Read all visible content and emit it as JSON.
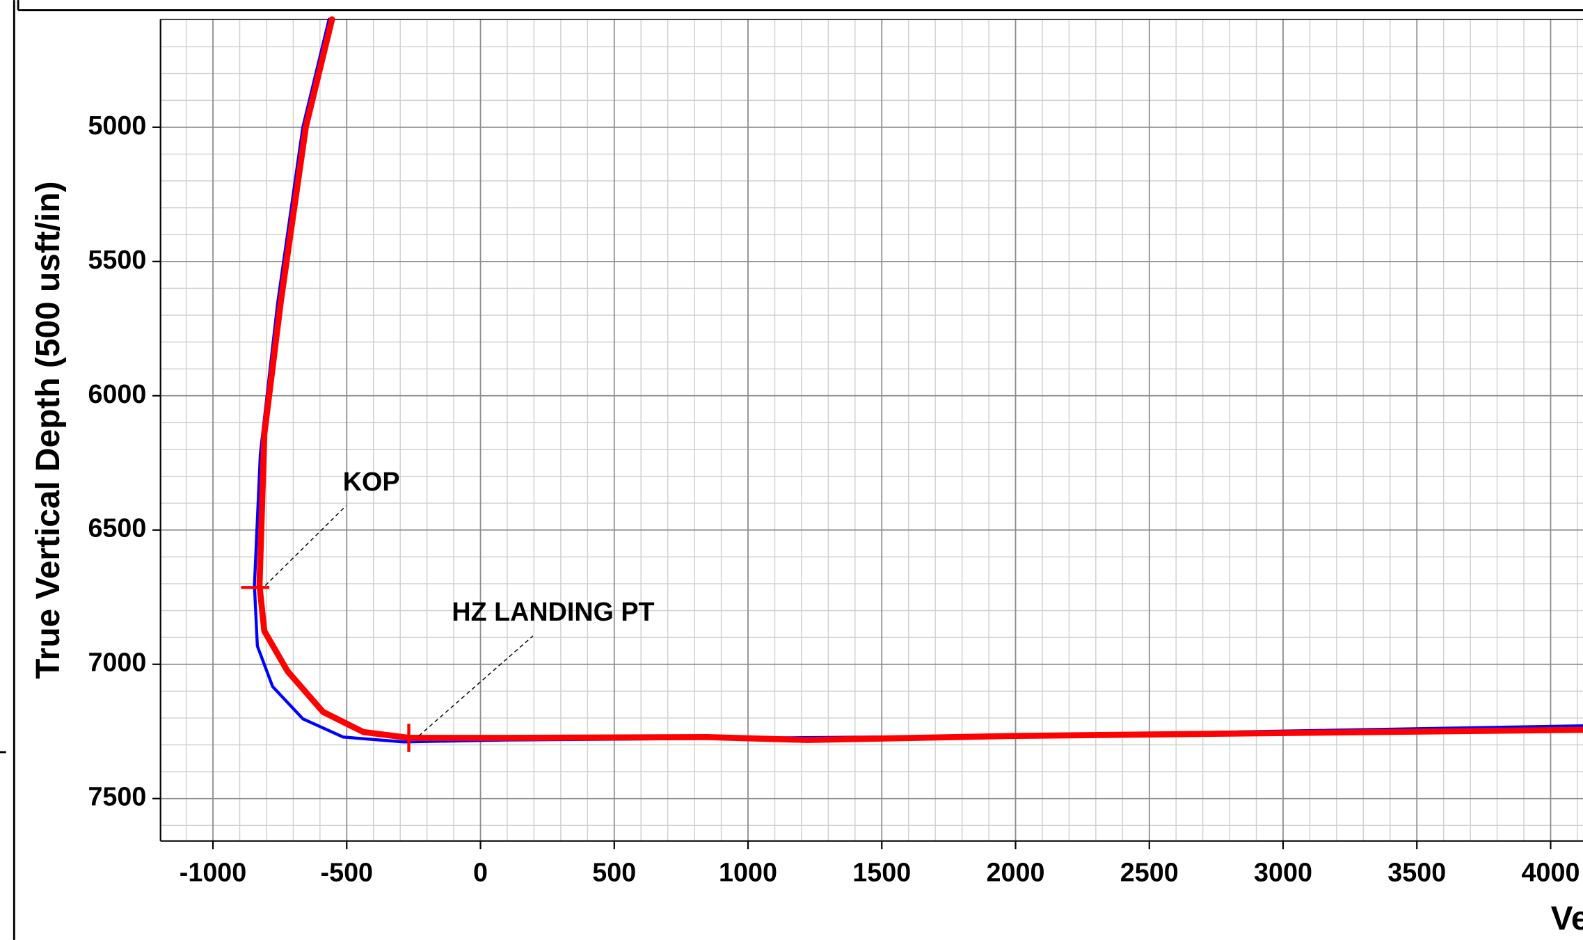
{
  "chart_data": {
    "type": "line",
    "x_label": "Ve",
    "y_label": "True Vertical Depth (500 usft/in)",
    "xlim": [
      -1196,
      4121
    ],
    "ylim": [
      4598,
      7658
    ],
    "y_inverted": true,
    "xticks": [
      -1000,
      -500,
      0,
      500,
      1000,
      1500,
      2000,
      2500,
      3000,
      3500,
      4000
    ],
    "yticks": [
      5000,
      5500,
      6000,
      6500,
      7000,
      7500
    ],
    "xminorticks": [
      -1100,
      -1000,
      -900,
      -800,
      -700,
      -600,
      -500,
      -400,
      -300,
      -200,
      -100,
      0,
      100,
      200,
      300,
      400,
      500,
      600,
      700,
      800,
      900,
      1000,
      1100,
      1200,
      1300,
      1400,
      1500,
      1600,
      1700,
      1800,
      1900,
      2000,
      2100,
      2200,
      2300,
      2400,
      2500,
      2600,
      2700,
      2800,
      2900,
      3000,
      3100,
      3200,
      3300,
      3400,
      3500,
      3600,
      3700,
      3800,
      3900,
      4000,
      4100
    ],
    "yminorticks": [
      4600,
      4700,
      4800,
      4900,
      5000,
      5100,
      5200,
      5300,
      5400,
      5500,
      5600,
      5700,
      5800,
      5900,
      6000,
      6100,
      6200,
      6300,
      6400,
      6500,
      6600,
      6700,
      6800,
      6900,
      7000,
      7100,
      7200,
      7300,
      7400,
      7500,
      7600
    ],
    "grid": true,
    "series": [
      {
        "color": "#0000ff",
        "width": 3,
        "x": [
          -566,
          -664,
          -758,
          -823,
          -845,
          -834,
          -777,
          -664,
          -513,
          -287,
          91,
          1977,
          4121
        ],
        "values": [
          4598,
          5000,
          5654,
          6218,
          6707,
          6932,
          7083,
          7203,
          7271,
          7289,
          7282,
          7267,
          7229
        ]
      },
      {
        "color": "#ff0000",
        "width": 6,
        "x": [
          -555,
          -653,
          -747,
          -808,
          -826,
          -808,
          -721,
          -589,
          -438,
          -268,
          91,
          845,
          1223,
          1977,
          2732,
          4121
        ],
        "values": [
          4598,
          5000,
          5654,
          6143,
          6707,
          6876,
          7026,
          7177,
          7252,
          7274,
          7274,
          7271,
          7282,
          7267,
          7259,
          7244
        ]
      }
    ],
    "annotations": [
      {
        "text": "KOP",
        "x": -842,
        "y": 6714,
        "orient": "h"
      },
      {
        "text": "HZ LANDING PT",
        "x": -268,
        "y": 7274,
        "orient": "v"
      }
    ]
  }
}
